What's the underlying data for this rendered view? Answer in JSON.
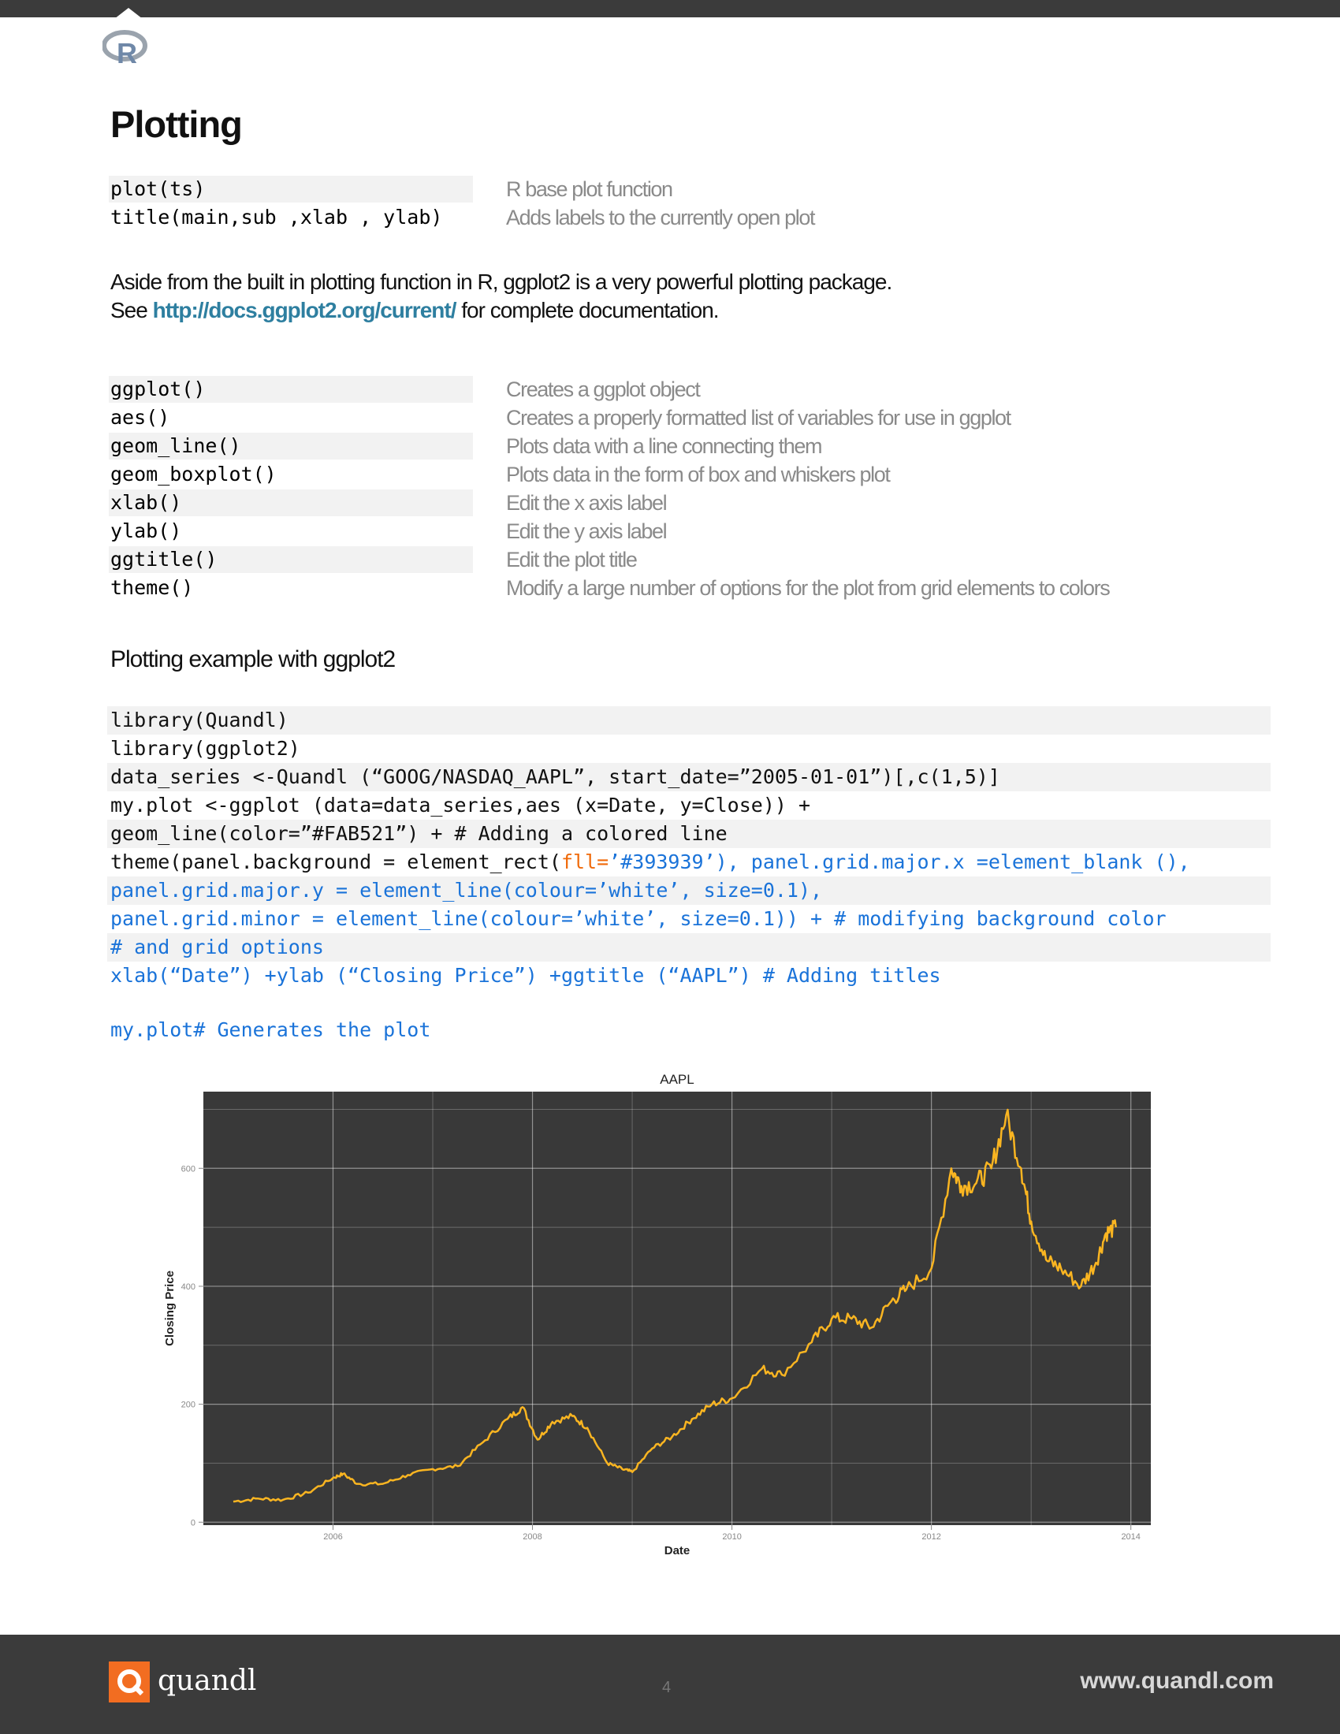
{
  "page": {
    "title": "Plotting",
    "page_number": "4",
    "footer_brand": "quandl",
    "footer_url": "www.quandl.com",
    "logo_letter": "R"
  },
  "base_functions": [
    {
      "code": "plot(ts)",
      "desc": "R base plot function"
    },
    {
      "code": "title(main,sub ,xlab , ylab)",
      "desc": "Adds labels to the currently open plot"
    }
  ],
  "intro": {
    "line1": "Aside from the built in plotting function in R, ggplot2 is a very powerful plotting package.",
    "see": "See",
    "link": "http://docs.ggplot2.org/current/",
    "after_link": "for complete documentation."
  },
  "ggplot_functions": [
    {
      "code": "ggplot()",
      "desc": "Creates a ggplot object"
    },
    {
      "code": "aes()",
      "desc": "Creates a properly formatted list of variables for use in ggplot"
    },
    {
      "code": "geom_line()",
      "desc": "Plots data with a line connecting them"
    },
    {
      "code": "geom_boxplot()",
      "desc": "Plots data in the form of box and whiskers plot"
    },
    {
      "code": "xlab()",
      "desc": "Edit the x axis label"
    },
    {
      "code": "ylab()",
      "desc": "Edit the y axis label"
    },
    {
      "code": "ggtitle()",
      "desc": "Edit the plot title"
    },
    {
      "code": "theme()",
      "desc": "Modify a large number of options for the plot from grid elements to colors"
    }
  ],
  "example_heading": "Plotting example with ggplot2",
  "code": {
    "l1": "library(Quandl)",
    "l2": "library(ggplot2)",
    "l3": "data_series <-Quandl (“GOOG/NASDAQ_AAPL”, start_date=”2005-01-01”)[,c(1,5)]",
    "l4": "my.plot <-ggplot (data=data_series,aes (x=Date, y=Close)) +",
    "l5": "geom_line(color=”#FAB521”) + # Adding a colored line",
    "l6a": "theme(panel.background = element_rect(",
    "l6b": "fll=",
    "l6c": "’#393939’), panel.grid.major.x =element_blank (),",
    "l7": "panel.grid.major.y = element_line(colour=’white’, size=0.1),",
    "l8": "panel.grid.minor = element_line(colour=’white’, size=0.1)) + # modifying background color",
    "l9": "# and grid options",
    "l10": "xlab(“Date”) +ylab (“Closing Price”) +ggtitle (“AAPL”) # Adding titles",
    "l11": "my.plot# Generates the plot"
  },
  "chart_data": {
    "type": "line",
    "title": "AAPL",
    "xlabel": "Date",
    "ylabel": "Closing Price",
    "xlim": [
      2004.7,
      2014.2
    ],
    "ylim": [
      -5,
      730
    ],
    "x_ticks": [
      2006,
      2008,
      2010,
      2012,
      2014
    ],
    "y_ticks": [
      0,
      200,
      400,
      600
    ],
    "line_color": "#FAB521",
    "panel_color": "#393939",
    "x": [
      2005.0,
      2005.25,
      2005.5,
      2005.75,
      2006.0,
      2006.1,
      2006.25,
      2006.5,
      2006.75,
      2007.0,
      2007.25,
      2007.5,
      2007.75,
      2007.9,
      2008.05,
      2008.2,
      2008.4,
      2008.55,
      2008.75,
      2008.9,
      2009.0,
      2009.2,
      2009.4,
      2009.6,
      2009.8,
      2010.0,
      2010.3,
      2010.5,
      2010.8,
      2011.0,
      2011.2,
      2011.4,
      2011.6,
      2011.75,
      2012.0,
      2012.2,
      2012.3,
      2012.45,
      2012.6,
      2012.75,
      2012.9,
      2013.0,
      2013.15,
      2013.3,
      2013.5,
      2013.65,
      2013.75,
      2013.85
    ],
    "values": [
      35,
      40,
      38,
      50,
      75,
      82,
      65,
      65,
      80,
      90,
      95,
      135,
      175,
      195,
      140,
      170,
      180,
      160,
      100,
      90,
      85,
      125,
      145,
      175,
      200,
      210,
      260,
      250,
      305,
      345,
      345,
      330,
      375,
      395,
      430,
      600,
      570,
      575,
      600,
      690,
      600,
      510,
      445,
      430,
      400,
      440,
      490,
      500
    ]
  }
}
